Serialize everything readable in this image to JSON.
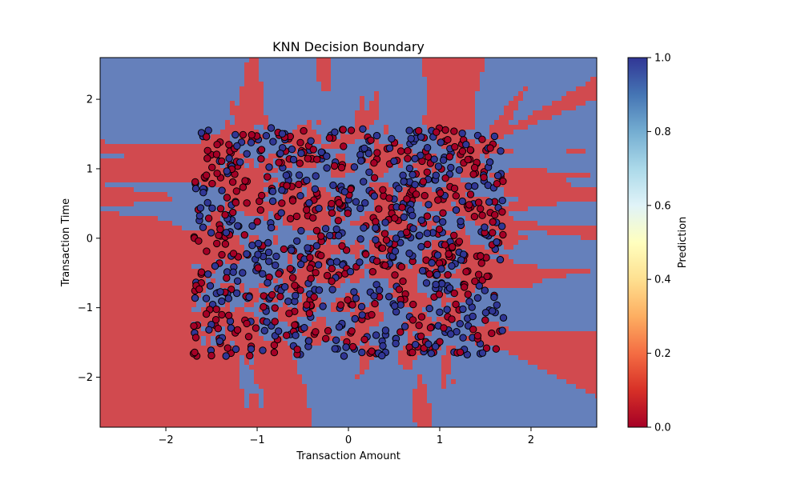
{
  "chart_data": {
    "type": "scatter",
    "title": "KNN Decision Boundary",
    "xlabel": "Transaction Amount",
    "ylabel": "Transaction Time",
    "xlim": [
      -2.72,
      2.72
    ],
    "ylim": [
      -2.72,
      2.6
    ],
    "x_ticks": [
      -2,
      -1,
      0,
      1,
      2
    ],
    "x_tick_labels": [
      "−2",
      "−1",
      "0",
      "1",
      "2"
    ],
    "y_ticks": [
      -2,
      -1,
      0,
      1,
      2
    ],
    "y_tick_labels": [
      "−2",
      "−1",
      "0",
      "1",
      "2"
    ],
    "grid": false,
    "background": "decision regions filled by predicted class (0 = red, 1 = blue)",
    "colormap": "RdYlBu",
    "colorbar": {
      "label": "Prediction",
      "range": [
        0.0,
        1.0
      ],
      "ticks": [
        0.0,
        0.2,
        0.4,
        0.6,
        0.8,
        1.0
      ],
      "tick_labels": [
        "0.0",
        "0.2",
        "0.4",
        "0.6",
        "0.8",
        "1.0"
      ]
    },
    "points": {
      "x_range": [
        -1.7,
        1.7
      ],
      "y_range": [
        -1.7,
        1.6
      ],
      "count_approx": 900,
      "classes": [
        0,
        1
      ],
      "distribution": "roughly uniform over the range, classes interleaved"
    },
    "colors": {
      "class_0_region": "#d14a4f",
      "class_1_region": "#6580bb",
      "class_0_point": "#a50026",
      "class_1_point": "#313695",
      "boundary": "#ffffbf"
    }
  }
}
